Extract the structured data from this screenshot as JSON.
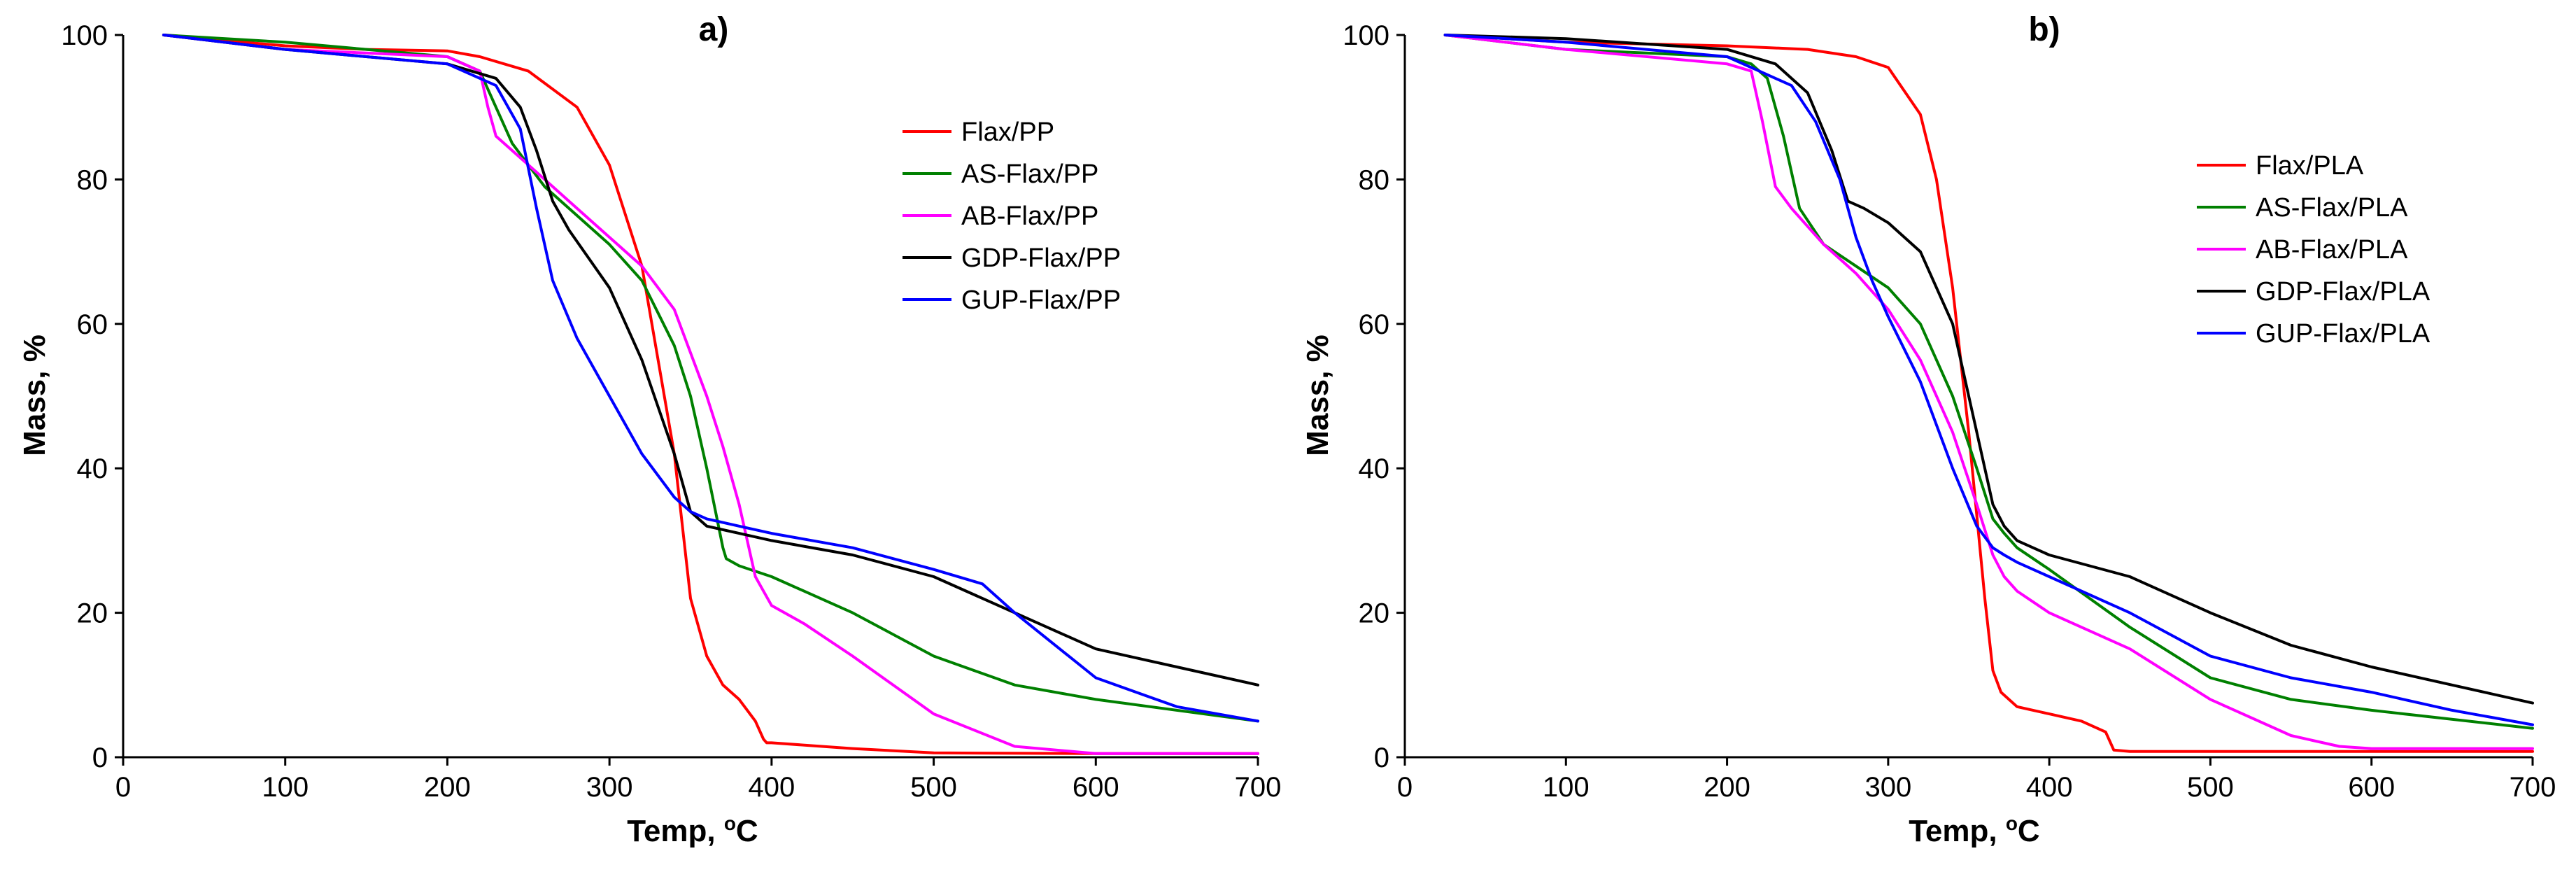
{
  "chart_data": [
    {
      "panel_label": "a)",
      "type": "line",
      "xlabel": "Temp, ",
      "xlabel_unit_sup": "o",
      "xlabel_unit": "C",
      "ylabel": "Mass, %",
      "xlim": [
        0,
        700
      ],
      "ylim": [
        0,
        100
      ],
      "xticks": [
        "0",
        "100",
        "200",
        "300",
        "400",
        "500",
        "600",
        "700"
      ],
      "yticks": [
        "0",
        "20",
        "40",
        "60",
        "80",
        "100"
      ],
      "grid": false,
      "legend_position": "upper-right",
      "series": [
        {
          "name": "Flax/PP",
          "color": "#ff0000",
          "x": [
            25,
            100,
            150,
            200,
            220,
            250,
            280,
            300,
            320,
            340,
            350,
            360,
            370,
            380,
            390,
            395,
            397,
            400,
            450,
            500,
            600,
            700
          ],
          "y": [
            100,
            98.5,
            98,
            97.8,
            97,
            95,
            90,
            82,
            68,
            42,
            22,
            14,
            10,
            8,
            5,
            2.5,
            2,
            2,
            1.2,
            0.6,
            0.5,
            0.5
          ]
        },
        {
          "name": "AS-Flax/PP",
          "color": "#008000",
          "x": [
            25,
            100,
            150,
            200,
            220,
            230,
            240,
            250,
            260,
            280,
            300,
            320,
            340,
            350,
            360,
            370,
            372,
            380,
            400,
            450,
            500,
            550,
            600,
            700
          ],
          "y": [
            100,
            99,
            98,
            97,
            95,
            90,
            85,
            82,
            79,
            75,
            71,
            66,
            57,
            50,
            40,
            29,
            27.5,
            26.5,
            25,
            20,
            14,
            10,
            8,
            5
          ]
        },
        {
          "name": "AB-Flax/PP",
          "color": "#ff00ff",
          "x": [
            25,
            100,
            150,
            200,
            220,
            225,
            230,
            240,
            260,
            280,
            300,
            320,
            340,
            360,
            370,
            380,
            390,
            400,
            420,
            450,
            500,
            550,
            600,
            650,
            700
          ],
          "y": [
            100,
            98,
            97.5,
            97,
            95,
            90,
            86,
            84,
            80,
            76,
            72,
            68,
            62,
            50,
            43,
            35,
            25,
            21,
            18.5,
            14,
            6,
            1.5,
            0.5,
            0.5,
            0.5
          ]
        },
        {
          "name": "GDP-Flax/PP",
          "color": "#000000",
          "x": [
            25,
            100,
            150,
            200,
            230,
            245,
            255,
            265,
            275,
            300,
            320,
            340,
            350,
            360,
            380,
            400,
            450,
            500,
            550,
            600,
            650,
            700
          ],
          "y": [
            100,
            98,
            97,
            96,
            94,
            90,
            84,
            77,
            73,
            65,
            55,
            42,
            34,
            32,
            31,
            30,
            28,
            25,
            20,
            15,
            12.5,
            10
          ]
        },
        {
          "name": "GUP-Flax/PP",
          "color": "#0000ff",
          "x": [
            25,
            100,
            150,
            200,
            230,
            245,
            255,
            265,
            280,
            300,
            320,
            340,
            350,
            360,
            380,
            400,
            450,
            500,
            530,
            550,
            600,
            650,
            700
          ],
          "y": [
            100,
            98,
            97,
            96,
            93,
            87,
            76,
            66,
            58,
            50,
            42,
            36,
            34,
            33,
            32,
            31,
            29,
            26,
            24,
            20,
            11,
            7,
            5
          ]
        }
      ]
    },
    {
      "panel_label": "b)",
      "type": "line",
      "xlabel": "Temp, ",
      "xlabel_unit_sup": "o",
      "xlabel_unit": "C",
      "ylabel": "Mass, %",
      "xlim": [
        0,
        700
      ],
      "ylim": [
        0,
        100
      ],
      "xticks": [
        "0",
        "100",
        "200",
        "300",
        "400",
        "500",
        "600",
        "700"
      ],
      "yticks": [
        "0",
        "20",
        "40",
        "60",
        "80",
        "100"
      ],
      "grid": false,
      "legend_position": "upper-right",
      "series": [
        {
          "name": "Flax/PLA",
          "color": "#ff0000",
          "x": [
            25,
            100,
            200,
            250,
            280,
            300,
            320,
            330,
            340,
            350,
            360,
            365,
            370,
            380,
            400,
            420,
            435,
            438,
            440,
            450,
            500,
            600,
            700
          ],
          "y": [
            100,
            99,
            98.5,
            98,
            97,
            95.5,
            89,
            80,
            65,
            45,
            22,
            12,
            9,
            7,
            6,
            5,
            3.5,
            2,
            1,
            0.8,
            0.8,
            0.8,
            0.8
          ]
        },
        {
          "name": "AS-Flax/PLA",
          "color": "#008000",
          "x": [
            25,
            100,
            200,
            215,
            225,
            235,
            245,
            260,
            280,
            300,
            320,
            340,
            355,
            365,
            372,
            380,
            400,
            450,
            500,
            550,
            600,
            700
          ],
          "y": [
            100,
            98,
            97,
            96,
            94,
            86,
            76,
            71,
            68,
            65,
            60,
            50,
            40,
            33,
            31,
            29,
            26,
            18,
            11,
            8,
            6.5,
            4
          ]
        },
        {
          "name": "AB-Flax/PLA",
          "color": "#ff00ff",
          "x": [
            25,
            100,
            200,
            215,
            222,
            230,
            240,
            260,
            280,
            300,
            320,
            340,
            355,
            365,
            372,
            380,
            400,
            450,
            500,
            550,
            580,
            600,
            700
          ],
          "y": [
            100,
            98,
            96,
            95,
            88,
            79,
            76,
            71,
            67,
            62,
            55,
            45,
            35,
            28,
            25,
            23,
            20,
            15,
            8,
            3,
            1.5,
            1.2,
            1.2
          ]
        },
        {
          "name": "GDP-Flax/PLA",
          "color": "#000000",
          "x": [
            25,
            100,
            200,
            230,
            250,
            265,
            275,
            285,
            300,
            320,
            340,
            355,
            365,
            372,
            380,
            400,
            450,
            500,
            550,
            600,
            650,
            700
          ],
          "y": [
            100,
            99.5,
            98,
            96,
            92,
            84,
            77,
            76,
            74,
            70,
            60,
            45,
            35,
            32,
            30,
            28,
            25,
            20,
            15.5,
            12.5,
            10,
            7.5
          ]
        },
        {
          "name": "GUP-Flax/PLA",
          "color": "#0000ff",
          "x": [
            25,
            100,
            200,
            220,
            240,
            255,
            270,
            280,
            290,
            300,
            320,
            340,
            355,
            365,
            372,
            380,
            400,
            450,
            500,
            550,
            600,
            650,
            700
          ],
          "y": [
            100,
            99,
            97,
            95,
            93,
            88,
            80,
            72,
            66,
            61,
            52,
            40,
            32,
            29,
            28,
            27,
            25,
            20,
            14,
            11,
            9,
            6.5,
            4.5
          ]
        }
      ]
    }
  ]
}
